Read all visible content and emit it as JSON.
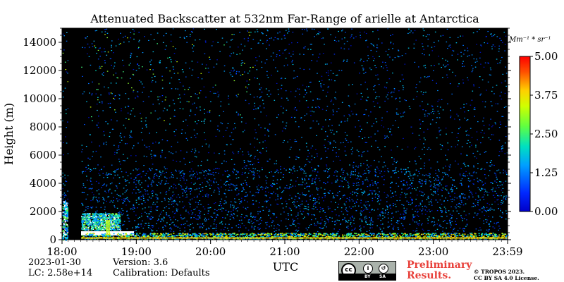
{
  "chart_data": {
    "type": "heatmap",
    "title": "Attenuated Backscatter at 532nm Far-Range of arielle at Antarctica",
    "xlabel": "UTC",
    "ylabel": "Height (m)",
    "x_ticks": [
      "18:00",
      "19:00",
      "20:00",
      "21:00",
      "22:00",
      "23:00",
      "23:59"
    ],
    "y_ticks": [
      0,
      2000,
      4000,
      6000,
      8000,
      10000,
      12000,
      14000
    ],
    "ylim": [
      0,
      15000
    ],
    "xlim_hours": [
      18.0,
      24.0
    ],
    "colorbar": {
      "unit_label": "Mm⁻¹ * sr⁻¹",
      "ticks": [
        "0.00",
        "1.25",
        "2.50",
        "3.75",
        "5.00"
      ],
      "range": [
        0,
        5
      ],
      "colormap": "jet"
    },
    "features": [
      {
        "description_value": "no-data gap",
        "x_start": "18:05",
        "x_end": "18:15",
        "value": null
      },
      {
        "description_value": "boundary layer backscatter",
        "height_top": 500,
        "value_range": [
          1.5,
          5.0
        ]
      },
      {
        "description_value": "aerosol layer",
        "x_start": "18:15",
        "x_end": "18:45",
        "height_top": 1800,
        "value_range": [
          0.8,
          2.5
        ]
      }
    ]
  },
  "footer": {
    "date": "2023-01-30",
    "lc": "LC: 2.58e+14",
    "version": "Version: 3.6",
    "calibration": "Calibration: Defaults",
    "preliminary_line1": "Preliminary",
    "preliminary_line2": "Results.",
    "copyright_line1": "© TROPOS 2023.",
    "copyright_line2": "CC BY SA 4.0 License.",
    "cc_by": "BY",
    "cc_sa": "SA"
  },
  "colors": {
    "background_plot": "#000000",
    "preliminary": "#e8403a"
  }
}
